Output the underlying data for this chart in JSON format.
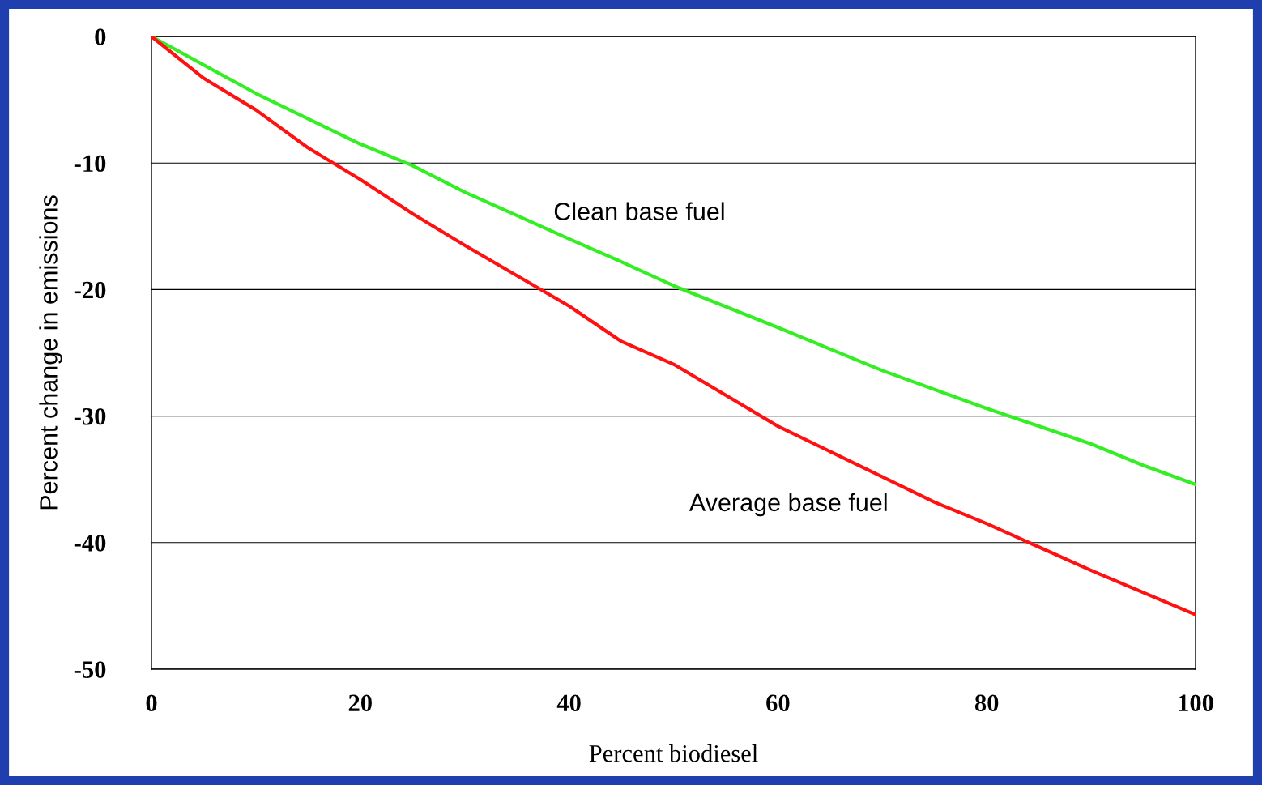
{
  "chart_data": {
    "type": "line",
    "xlabel": "Percent biodiesel",
    "ylabel": "Percent change in emissions",
    "xlim": [
      0,
      100
    ],
    "xticks": [
      0,
      20,
      40,
      60,
      80,
      100
    ],
    "ylim": [
      -50,
      0
    ],
    "yticks": [
      -50,
      -40,
      -30,
      -20,
      -10,
      0
    ],
    "grid": "y",
    "legend": false,
    "marker": "none",
    "line_style": "solid",
    "series": [
      {
        "name": "Clean base fuel",
        "color": "#33ee22",
        "x": [
          0,
          10,
          20,
          25,
          30,
          40,
          45,
          50,
          60,
          65,
          70,
          80,
          90,
          95,
          100
        ],
        "values": [
          0,
          -4.5,
          -8.5,
          -10.2,
          -12.3,
          -16.0,
          -17.8,
          -19.7,
          -23.0,
          -24.7,
          -26.4,
          -29.4,
          -32.2,
          -33.9,
          -35.4
        ]
      },
      {
        "name": "Average base fuel",
        "color": "#ff1111",
        "x": [
          0,
          5,
          10,
          15,
          20,
          25,
          30,
          40,
          45,
          50,
          60,
          65,
          70,
          75,
          80,
          90,
          100
        ],
        "values": [
          0,
          -3.3,
          -5.8,
          -8.8,
          -11.3,
          -14.0,
          -16.5,
          -21.3,
          -24.1,
          -25.9,
          -30.8,
          -32.8,
          -34.8,
          -36.8,
          -38.5,
          -42.2,
          -45.7
        ]
      }
    ]
  }
}
